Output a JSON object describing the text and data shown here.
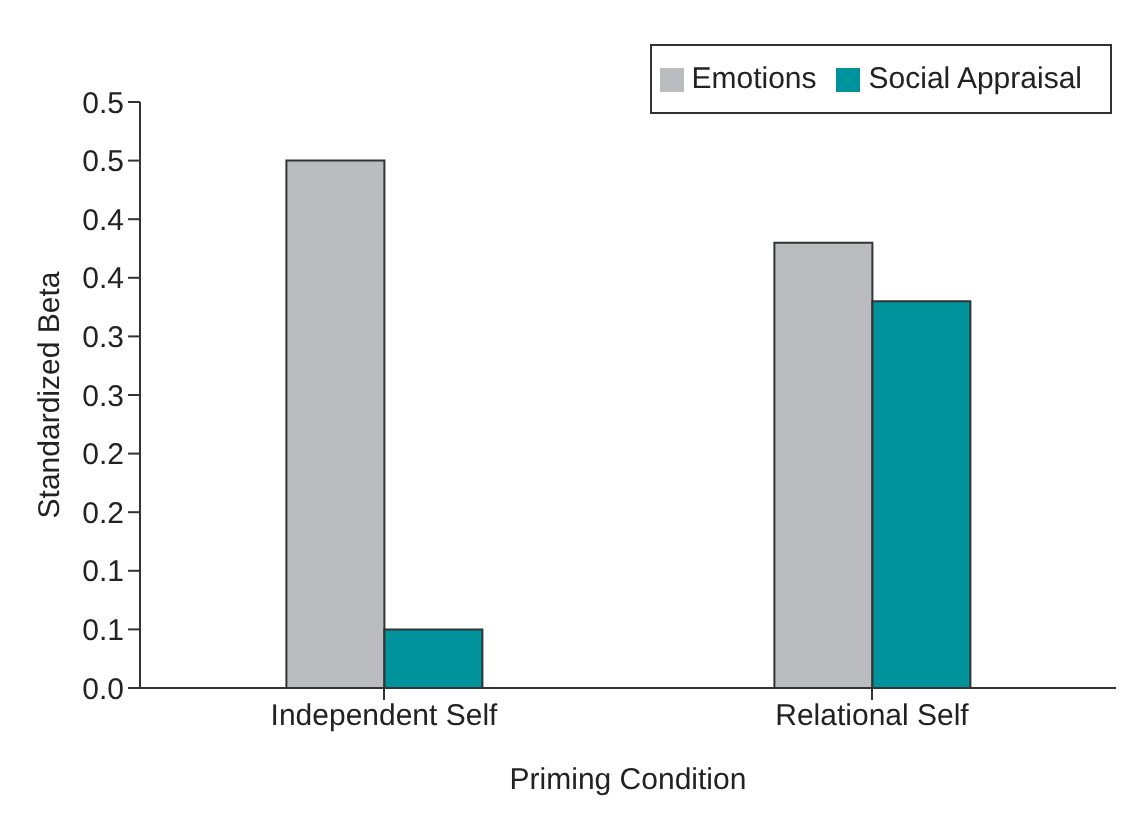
{
  "chart_data": {
    "type": "bar",
    "xlabel": "Priming Condition",
    "ylabel": "Standardized Beta",
    "categories": [
      "Independent Self",
      "Relational Self"
    ],
    "series": [
      {
        "name": "Emotions",
        "color": "#bbbcc0",
        "values": [
          0.45,
          0.38
        ]
      },
      {
        "name": "Social Appraisal",
        "color": "#00939c",
        "values": [
          0.05,
          0.33
        ]
      }
    ],
    "ylim": [
      0,
      0.5
    ],
    "yticks": [
      {
        "value": 0,
        "label": "0.0"
      },
      {
        "value": 0.05,
        "label": "0.1"
      },
      {
        "value": 0.1,
        "label": "0.1"
      },
      {
        "value": 0.15,
        "label": "0.2"
      },
      {
        "value": 0.2,
        "label": "0.2"
      },
      {
        "value": 0.25,
        "label": "0.3"
      },
      {
        "value": 0.3,
        "label": "0.3"
      },
      {
        "value": 0.35,
        "label": "0.4"
      },
      {
        "value": 0.4,
        "label": "0.4"
      },
      {
        "value": 0.45,
        "label": "0.5"
      },
      {
        "value": 0.5,
        "label": "0.5"
      }
    ],
    "grid": false,
    "legend": "top right"
  }
}
